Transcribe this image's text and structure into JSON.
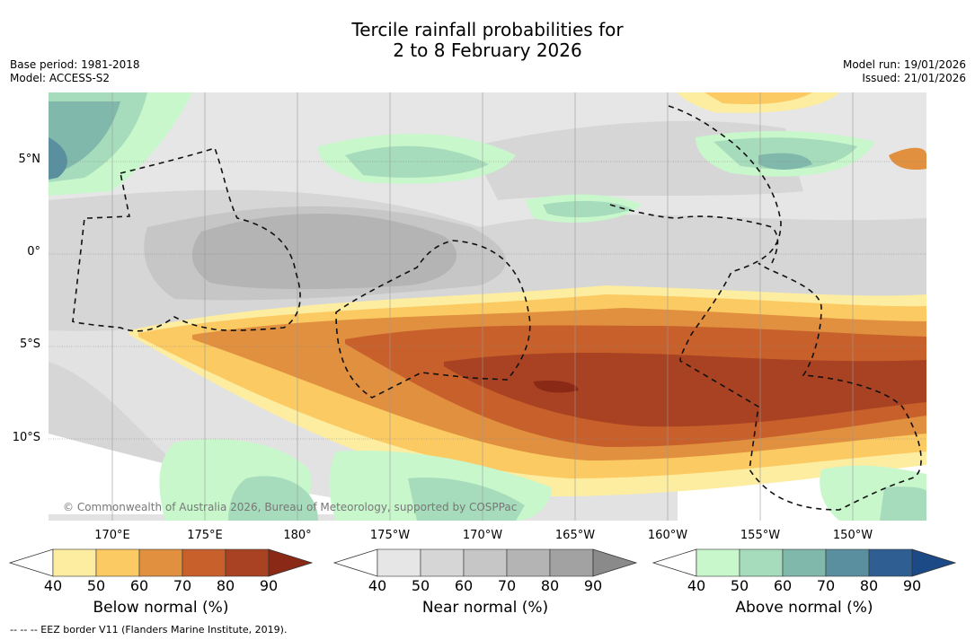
{
  "title": {
    "line1": "Tercile rainfall probabilities for",
    "line2": "2 to 8 February 2026"
  },
  "meta": {
    "base_period": "Base period: 1981-2018",
    "model": "Model: ACCESS-S2",
    "model_run": "Model run: 19/01/2026",
    "issued": "Issued: 21/01/2026"
  },
  "axes": {
    "lat_labels": [
      "5°N",
      "0°",
      "5°S",
      "10°S"
    ],
    "lon_labels": [
      "170°E",
      "175°E",
      "180°",
      "175°W",
      "170°W",
      "165°W",
      "160°W",
      "155°W",
      "150°W"
    ]
  },
  "colors": {
    "below": [
      "#fdeda0",
      "#fcca63",
      "#e0903f",
      "#c8602b",
      "#a84222",
      "#8a2a16"
    ],
    "near": [
      "#e6e6e6",
      "#d6d6d6",
      "#c6c6c6",
      "#b4b4b4",
      "#a2a2a2",
      "#8a8a8a"
    ],
    "above": [
      "#c8f7cc",
      "#a6dcbb",
      "#80b8ab",
      "#5a8fa0",
      "#2f5f92",
      "#1b4a86"
    ]
  },
  "colorbars": [
    {
      "name": "Below normal (%)",
      "ticks": [
        "40",
        "50",
        "60",
        "70",
        "80",
        "90"
      ]
    },
    {
      "name": "Near normal (%)",
      "ticks": [
        "40",
        "50",
        "60",
        "70",
        "80",
        "90"
      ]
    },
    {
      "name": "Above normal (%)",
      "ticks": [
        "40",
        "50",
        "60",
        "70",
        "80",
        "90"
      ]
    }
  ],
  "copyright": "© Commonwealth of Australia 2026, Bureau of Meteorology, supported by COSPPac",
  "footnote": "--  --  -- EEZ border V11 (Flanders Marine Institute, 2019)."
}
